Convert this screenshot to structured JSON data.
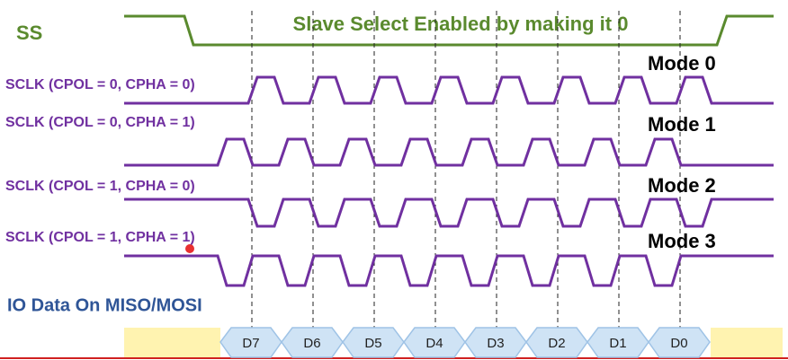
{
  "ss_label": "SS",
  "ss_note": "Slave Select Enabled by making it 0",
  "signals": [
    {
      "label": "SCLK (CPOL = 0, CPHA = 0)",
      "mode": "Mode 0"
    },
    {
      "label": "SCLK (CPOL = 0, CPHA = 1)",
      "mode": "Mode 1"
    },
    {
      "label": "SCLK (CPOL = 1, CPHA = 0)",
      "mode": "Mode 2"
    },
    {
      "label": "SCLK (CPOL = 1, CPHA = 1)",
      "mode": "Mode 3"
    }
  ],
  "io_label": "IO Data On MISO/MOSI",
  "bits": [
    "D7",
    "D6",
    "D5",
    "D4",
    "D3",
    "D2",
    "D1",
    "D0"
  ]
}
